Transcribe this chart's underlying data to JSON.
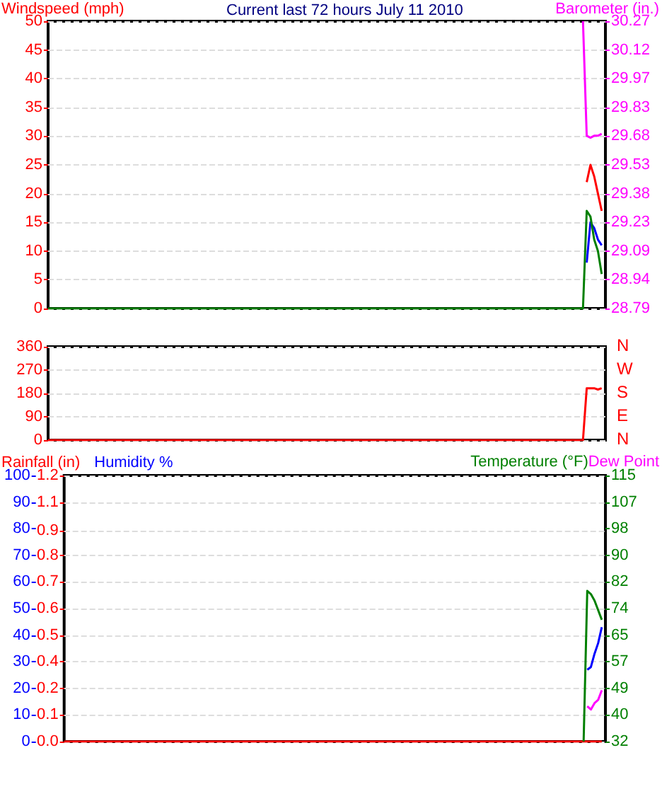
{
  "chart_data": [
    {
      "type": "line",
      "title": "Current last 72 hours July 11 2010",
      "ylabel": "Windspeed (mph)",
      "y2label": "Barometer (in.)",
      "categories": [
        null,
        null,
        null,
        null,
        null,
        null,
        null,
        null,
        null,
        null,
        null,
        null,
        null,
        null,
        null,
        null,
        null,
        null,
        null,
        null,
        null,
        null,
        null,
        null,
        null,
        null,
        null,
        null,
        null,
        null,
        null,
        null,
        null,
        null,
        null,
        null,
        null,
        null,
        null,
        null,
        null,
        null,
        null,
        null,
        null,
        null,
        null,
        null,
        null,
        null,
        null,
        null,
        null,
        null,
        null,
        null,
        null,
        null,
        null,
        null,
        null,
        null,
        null,
        null,
        null,
        null,
        null,
        null,
        null,
        null,
        null,
        null,
        null,
        null,
        null,
        null,
        null,
        null,
        null,
        null,
        null,
        null,
        null,
        null,
        null,
        null,
        null,
        null,
        null,
        null,
        null,
        null,
        null,
        null,
        null,
        null,
        null,
        null,
        null,
        null,
        null,
        null,
        null,
        null,
        null,
        null,
        null,
        null,
        null,
        null,
        null,
        null,
        null,
        null,
        null,
        null,
        null,
        null,
        null,
        null,
        null,
        null,
        null,
        null,
        null,
        null,
        null,
        null,
        null,
        null,
        null,
        null,
        null,
        null,
        null,
        null,
        null,
        null,
        null,
        null,
        null,
        null,
        null,
        null,
        null,
        null,
        null,
        null,
        null,
        null
      ],
      "ylim": [
        0,
        50
      ],
      "yticks": [
        0,
        5,
        10,
        15,
        20,
        25,
        30,
        35,
        40,
        45,
        50
      ],
      "y2lim": [
        28.79,
        30.27
      ],
      "y2ticks": [
        28.79,
        {
          "value": 28.938,
          "label": "28.94"
        },
        {
          "value": 29.086,
          "label": "29.09"
        },
        {
          "value": 29.234,
          "label": "29.23"
        },
        {
          "value": 29.382,
          "label": "29.38"
        },
        29.53,
        {
          "value": 29.678,
          "label": "29.68"
        },
        {
          "value": 29.826,
          "label": "29.83"
        },
        {
          "value": 29.974,
          "label": "29.97"
        },
        {
          "value": 30.122,
          "label": "30.12"
        },
        30.27
      ],
      "tick_labels": "y",
      "grid": "y",
      "series": [
        {
          "color": "#ff0000",
          "values": [
            null,
            null,
            null,
            null,
            null,
            null,
            null,
            null,
            null,
            null,
            null,
            null,
            null,
            null,
            null,
            null,
            null,
            null,
            null,
            null,
            null,
            null,
            null,
            null,
            null,
            null,
            null,
            null,
            null,
            null,
            null,
            null,
            null,
            null,
            null,
            null,
            null,
            null,
            null,
            null,
            null,
            null,
            null,
            null,
            null,
            null,
            null,
            null,
            null,
            null,
            null,
            null,
            null,
            null,
            null,
            null,
            null,
            null,
            null,
            null,
            null,
            null,
            null,
            null,
            null,
            null,
            null,
            null,
            null,
            null,
            null,
            null,
            null,
            null,
            null,
            null,
            null,
            null,
            null,
            null,
            null,
            null,
            null,
            null,
            null,
            null,
            null,
            null,
            null,
            null,
            null,
            null,
            null,
            null,
            null,
            null,
            null,
            null,
            null,
            null,
            null,
            null,
            null,
            null,
            null,
            null,
            null,
            null,
            null,
            null,
            null,
            null,
            null,
            null,
            null,
            null,
            null,
            null,
            null,
            null,
            null,
            null,
            null,
            null,
            null,
            null,
            null,
            null,
            null,
            null,
            null,
            null,
            null,
            null,
            null,
            null,
            null,
            null,
            null,
            null,
            null,
            null,
            null,
            null,
            22,
            25,
            23,
            20,
            17,
            null
          ]
        },
        {
          "color": "#0000ff",
          "values": [
            null,
            null,
            null,
            null,
            null,
            null,
            null,
            null,
            null,
            null,
            null,
            null,
            null,
            null,
            null,
            null,
            null,
            null,
            null,
            null,
            null,
            null,
            null,
            null,
            null,
            null,
            null,
            null,
            null,
            null,
            null,
            null,
            null,
            null,
            null,
            null,
            null,
            null,
            null,
            null,
            null,
            null,
            null,
            null,
            null,
            null,
            null,
            null,
            null,
            null,
            null,
            null,
            null,
            null,
            null,
            null,
            null,
            null,
            null,
            null,
            null,
            null,
            null,
            null,
            null,
            null,
            null,
            null,
            null,
            null,
            null,
            null,
            null,
            null,
            null,
            null,
            null,
            null,
            null,
            null,
            null,
            null,
            null,
            null,
            null,
            null,
            null,
            null,
            null,
            null,
            null,
            null,
            null,
            null,
            null,
            null,
            null,
            null,
            null,
            null,
            null,
            null,
            null,
            null,
            null,
            null,
            null,
            null,
            null,
            null,
            null,
            null,
            null,
            null,
            null,
            null,
            null,
            null,
            null,
            null,
            null,
            null,
            null,
            null,
            null,
            null,
            null,
            null,
            null,
            null,
            null,
            null,
            null,
            null,
            null,
            null,
            null,
            null,
            null,
            null,
            null,
            null,
            null,
            null,
            8,
            15,
            14,
            12,
            11,
            null
          ]
        },
        {
          "color": "#008000",
          "values": [
            0,
            0,
            0,
            0,
            0,
            0,
            0,
            0,
            0,
            0,
            0,
            0,
            0,
            0,
            0,
            0,
            0,
            0,
            0,
            0,
            0,
            0,
            0,
            0,
            0,
            0,
            0,
            0,
            0,
            0,
            0,
            0,
            0,
            0,
            0,
            0,
            0,
            0,
            0,
            0,
            0,
            0,
            0,
            0,
            0,
            0,
            0,
            0,
            0,
            0,
            0,
            0,
            0,
            0,
            0,
            0,
            0,
            0,
            0,
            0,
            0,
            0,
            0,
            0,
            0,
            0,
            0,
            0,
            0,
            0,
            0,
            0,
            0,
            0,
            0,
            0,
            0,
            0,
            0,
            0,
            0,
            0,
            0,
            0,
            0,
            0,
            0,
            0,
            0,
            0,
            0,
            0,
            0,
            0,
            0,
            0,
            0,
            0,
            0,
            0,
            0,
            0,
            0,
            0,
            0,
            0,
            0,
            0,
            0,
            0,
            0,
            0,
            0,
            0,
            0,
            0,
            0,
            0,
            0,
            0,
            0,
            0,
            0,
            0,
            0,
            0,
            0,
            0,
            0,
            0,
            0,
            0,
            0,
            0,
            0,
            0,
            0,
            0,
            0,
            0,
            0,
            0,
            0,
            0,
            17,
            16,
            12,
            10,
            6,
            null
          ]
        },
        {
          "color": "#ff00ff",
          "axis": "y2",
          "values": [
            null,
            null,
            null,
            null,
            null,
            null,
            null,
            null,
            null,
            null,
            null,
            null,
            null,
            null,
            null,
            null,
            null,
            null,
            null,
            null,
            null,
            null,
            null,
            null,
            null,
            null,
            null,
            null,
            null,
            null,
            null,
            null,
            null,
            null,
            null,
            null,
            null,
            null,
            null,
            null,
            null,
            null,
            null,
            null,
            null,
            null,
            null,
            null,
            null,
            null,
            null,
            null,
            null,
            null,
            null,
            null,
            null,
            null,
            null,
            null,
            null,
            null,
            null,
            null,
            null,
            null,
            null,
            null,
            null,
            null,
            null,
            null,
            null,
            null,
            null,
            null,
            null,
            null,
            null,
            null,
            null,
            null,
            null,
            null,
            null,
            null,
            null,
            null,
            null,
            null,
            null,
            null,
            null,
            null,
            null,
            null,
            null,
            null,
            null,
            null,
            null,
            null,
            null,
            null,
            null,
            null,
            null,
            null,
            null,
            null,
            null,
            null,
            null,
            null,
            null,
            null,
            null,
            null,
            null,
            null,
            null,
            null,
            null,
            null,
            null,
            null,
            null,
            null,
            null,
            null,
            null,
            null,
            null,
            null,
            null,
            null,
            null,
            null,
            null,
            null,
            null,
            null,
            null,
            30.27,
            29.68,
            29.67,
            29.68,
            29.68,
            29.69,
            null
          ]
        }
      ]
    },
    {
      "type": "line",
      "categories": [
        null,
        null,
        null,
        null,
        null,
        null,
        null,
        null,
        null,
        null,
        null,
        null,
        null,
        null,
        null,
        null,
        null,
        null,
        null,
        null,
        null,
        null,
        null,
        null,
        null,
        null,
        null,
        null,
        null,
        null,
        null,
        null,
        null,
        null,
        null,
        null,
        null,
        null,
        null,
        null,
        null,
        null,
        null,
        null,
        null,
        null,
        null,
        null,
        null,
        null,
        null,
        null,
        null,
        null,
        null,
        null,
        null,
        null,
        null,
        null,
        null,
        null,
        null,
        null,
        null,
        null,
        null,
        null,
        null,
        null,
        null,
        null,
        null,
        null,
        null,
        null,
        null,
        null,
        null,
        null,
        null,
        null,
        null,
        null,
        null,
        null,
        null,
        null,
        null,
        null,
        null,
        null,
        null,
        null,
        null,
        null,
        null,
        null,
        null,
        null,
        null,
        null,
        null,
        null,
        null,
        null,
        null,
        null,
        null,
        null,
        null,
        null,
        null,
        null,
        null,
        null,
        null,
        null,
        null,
        null,
        null,
        null,
        null,
        null,
        null,
        null,
        null,
        null,
        null,
        null,
        null,
        null,
        null,
        null,
        null,
        null,
        null,
        null,
        null,
        null,
        null,
        null,
        null,
        null,
        null,
        null,
        null,
        null,
        null,
        null
      ],
      "ylim": [
        0,
        360
      ],
      "yticks": [
        0,
        90,
        180,
        270,
        360
      ],
      "annotations": [
        "N",
        "W",
        "S",
        "E",
        "N"
      ],
      "tick_labels": "y",
      "grid": "y",
      "series": [
        {
          "color": "#ff0000",
          "values": [
            0,
            0,
            0,
            0,
            0,
            0,
            0,
            0,
            0,
            0,
            0,
            0,
            0,
            0,
            0,
            0,
            0,
            0,
            0,
            0,
            0,
            0,
            0,
            0,
            0,
            0,
            0,
            0,
            0,
            0,
            0,
            0,
            0,
            0,
            0,
            0,
            0,
            0,
            0,
            0,
            0,
            0,
            0,
            0,
            0,
            0,
            0,
            0,
            0,
            0,
            0,
            0,
            0,
            0,
            0,
            0,
            0,
            0,
            0,
            0,
            0,
            0,
            0,
            0,
            0,
            0,
            0,
            0,
            0,
            0,
            0,
            0,
            0,
            0,
            0,
            0,
            0,
            0,
            0,
            0,
            0,
            0,
            0,
            0,
            0,
            0,
            0,
            0,
            0,
            0,
            0,
            0,
            0,
            0,
            0,
            0,
            0,
            0,
            0,
            0,
            0,
            0,
            0,
            0,
            0,
            0,
            0,
            0,
            0,
            0,
            0,
            0,
            0,
            0,
            0,
            0,
            0,
            0,
            0,
            0,
            0,
            0,
            0,
            0,
            0,
            0,
            0,
            0,
            0,
            0,
            0,
            0,
            0,
            0,
            0,
            0,
            0,
            0,
            0,
            0,
            0,
            0,
            0,
            0,
            200,
            200,
            200,
            195,
            200,
            null
          ]
        }
      ]
    },
    {
      "type": "line",
      "ylabel": "Rainfall (in)",
      "y3label": "Humidity %",
      "y2label": "Temperature (°F)",
      "categories": [
        null,
        null,
        null,
        null,
        null,
        null,
        null,
        null,
        null,
        null,
        null,
        null,
        null,
        null,
        null,
        null,
        null,
        null,
        null,
        null,
        null,
        null,
        null,
        null,
        null,
        null,
        null,
        null,
        null,
        null,
        null,
        null,
        null,
        null,
        null,
        null,
        null,
        null,
        null,
        null,
        null,
        null,
        null,
        null,
        null,
        null,
        null,
        null,
        null,
        null,
        null,
        null,
        null,
        null,
        null,
        null,
        null,
        null,
        null,
        null,
        null,
        null,
        null,
        null,
        null,
        null,
        null,
        null,
        null,
        null,
        null,
        null,
        null,
        null,
        null,
        null,
        null,
        null,
        null,
        null,
        null,
        null,
        null,
        null,
        null,
        null,
        null,
        null,
        null,
        null,
        null,
        null,
        null,
        null,
        null,
        null,
        null,
        null,
        null,
        null,
        null,
        null,
        null,
        null,
        null,
        null,
        null,
        null,
        null,
        null,
        null,
        null,
        null,
        null,
        null,
        null,
        null,
        null,
        null,
        null,
        null,
        null,
        null,
        null,
        null,
        null,
        null,
        null,
        null,
        null,
        null,
        null,
        null,
        null,
        null,
        null,
        null,
        null,
        null,
        null,
        null,
        null,
        null,
        null,
        null,
        null,
        null,
        null,
        null,
        null
      ],
      "ylim": [
        0,
        1.2
      ],
      "yticks": [
        {
          "value": 0,
          "label": "0.0"
        },
        {
          "value": 0.12,
          "label": "0.1"
        },
        {
          "value": 0.24,
          "label": "0.2"
        },
        {
          "value": 0.36,
          "label": "0.4"
        },
        {
          "value": 0.48,
          "label": "0.5"
        },
        0.6,
        {
          "value": 0.72,
          "label": "0.7"
        },
        {
          "value": 0.84,
          "label": "0.8"
        },
        {
          "value": 0.95,
          "label": "0.9"
        },
        {
          "value": 1.08,
          "label": "1.1"
        },
        1.2
      ],
      "y3lim": [
        0,
        100
      ],
      "y3ticks": [
        0,
        10,
        20,
        30,
        40,
        50,
        60,
        70,
        80,
        90,
        100
      ],
      "y2lim": [
        32,
        115
      ],
      "y2ticks": [
        32,
        {
          "value": 40.3,
          "label": "40"
        },
        {
          "value": 48.6,
          "label": "49"
        },
        {
          "value": 56.9,
          "label": "57"
        },
        {
          "value": 65.2,
          "label": "65"
        },
        {
          "value": 73.5,
          "label": "74"
        },
        {
          "value": 81.8,
          "label": "82"
        },
        {
          "value": 90.1,
          "label": "90"
        },
        {
          "value": 98.4,
          "label": "98"
        },
        {
          "value": 106.7,
          "label": "107"
        },
        115
      ],
      "tick_labels": "y",
      "grid": "y",
      "series": [
        {
          "color": "#ff0000",
          "values": [
            0,
            0,
            0,
            0,
            0,
            0,
            0,
            0,
            0,
            0,
            0,
            0,
            0,
            0,
            0,
            0,
            0,
            0,
            0,
            0,
            0,
            0,
            0,
            0,
            0,
            0,
            0,
            0,
            0,
            0,
            0,
            0,
            0,
            0,
            0,
            0,
            0,
            0,
            0,
            0,
            0,
            0,
            0,
            0,
            0,
            0,
            0,
            0,
            0,
            0,
            0,
            0,
            0,
            0,
            0,
            0,
            0,
            0,
            0,
            0,
            0,
            0,
            0,
            0,
            0,
            0,
            0,
            0,
            0,
            0,
            0,
            0,
            0,
            0,
            0,
            0,
            0,
            0,
            0,
            0,
            0,
            0,
            0,
            0,
            0,
            0,
            0,
            0,
            0,
            0,
            0,
            0,
            0,
            0,
            0,
            0,
            0,
            0,
            0,
            0,
            0,
            0,
            0,
            0,
            0,
            0,
            0,
            0,
            0,
            0,
            0,
            0,
            0,
            0,
            0,
            0,
            0,
            0,
            0,
            0,
            0,
            0,
            0,
            0,
            0,
            0,
            0,
            0,
            0,
            0,
            0,
            0,
            0,
            0,
            0,
            0,
            0,
            0,
            0,
            0,
            0,
            0,
            0,
            0,
            0,
            0,
            0,
            0,
            0,
            null
          ]
        },
        {
          "color": "#008000",
          "axis": "y2",
          "values": [
            null,
            null,
            null,
            null,
            null,
            null,
            null,
            null,
            null,
            null,
            null,
            null,
            null,
            null,
            null,
            null,
            null,
            null,
            null,
            null,
            null,
            null,
            null,
            null,
            null,
            null,
            null,
            null,
            null,
            null,
            null,
            null,
            null,
            null,
            null,
            null,
            null,
            null,
            null,
            null,
            null,
            null,
            null,
            null,
            null,
            null,
            null,
            null,
            null,
            null,
            null,
            null,
            null,
            null,
            null,
            null,
            null,
            null,
            null,
            null,
            null,
            null,
            null,
            null,
            null,
            null,
            null,
            null,
            null,
            null,
            null,
            null,
            null,
            null,
            null,
            null,
            null,
            null,
            null,
            null,
            null,
            null,
            null,
            null,
            null,
            null,
            null,
            null,
            null,
            null,
            null,
            null,
            null,
            null,
            null,
            null,
            null,
            null,
            null,
            null,
            null,
            null,
            null,
            null,
            null,
            null,
            null,
            null,
            null,
            null,
            null,
            null,
            null,
            null,
            null,
            null,
            null,
            null,
            null,
            null,
            null,
            null,
            null,
            null,
            null,
            null,
            null,
            null,
            null,
            null,
            null,
            null,
            null,
            null,
            null,
            null,
            null,
            null,
            null,
            null,
            null,
            null,
            null,
            32,
            79,
            78,
            76,
            73,
            70,
            null
          ]
        },
        {
          "name": "Dew Point",
          "color": "#ff00ff",
          "axis": "y2",
          "values": [
            null,
            null,
            null,
            null,
            null,
            null,
            null,
            null,
            null,
            null,
            null,
            null,
            null,
            null,
            null,
            null,
            null,
            null,
            null,
            null,
            null,
            null,
            null,
            null,
            null,
            null,
            null,
            null,
            null,
            null,
            null,
            null,
            null,
            null,
            null,
            null,
            null,
            null,
            null,
            null,
            null,
            null,
            null,
            null,
            null,
            null,
            null,
            null,
            null,
            null,
            null,
            null,
            null,
            null,
            null,
            null,
            null,
            null,
            null,
            null,
            null,
            null,
            null,
            null,
            null,
            null,
            null,
            null,
            null,
            null,
            null,
            null,
            null,
            null,
            null,
            null,
            null,
            null,
            null,
            null,
            null,
            null,
            null,
            null,
            null,
            null,
            null,
            null,
            null,
            null,
            null,
            null,
            null,
            null,
            null,
            null,
            null,
            null,
            null,
            null,
            null,
            null,
            null,
            null,
            null,
            null,
            null,
            null,
            null,
            null,
            null,
            null,
            null,
            null,
            null,
            null,
            null,
            null,
            null,
            null,
            null,
            null,
            null,
            null,
            null,
            null,
            null,
            null,
            null,
            null,
            null,
            null,
            null,
            null,
            null,
            null,
            null,
            null,
            null,
            null,
            null,
            null,
            null,
            null,
            43,
            42,
            44,
            45,
            48,
            null
          ]
        },
        {
          "color": "#0000ff",
          "axis": "y3",
          "values": [
            null,
            null,
            null,
            null,
            null,
            null,
            null,
            null,
            null,
            null,
            null,
            null,
            null,
            null,
            null,
            null,
            null,
            null,
            null,
            null,
            null,
            null,
            null,
            null,
            null,
            null,
            null,
            null,
            null,
            null,
            null,
            null,
            null,
            null,
            null,
            null,
            null,
            null,
            null,
            null,
            null,
            null,
            null,
            null,
            null,
            null,
            null,
            null,
            null,
            null,
            null,
            null,
            null,
            null,
            null,
            null,
            null,
            null,
            null,
            null,
            null,
            null,
            null,
            null,
            null,
            null,
            null,
            null,
            null,
            null,
            null,
            null,
            null,
            null,
            null,
            null,
            null,
            null,
            null,
            null,
            null,
            null,
            null,
            null,
            null,
            null,
            null,
            null,
            null,
            null,
            null,
            null,
            null,
            null,
            null,
            null,
            null,
            null,
            null,
            null,
            null,
            null,
            null,
            null,
            null,
            null,
            null,
            null,
            null,
            null,
            null,
            null,
            null,
            null,
            null,
            null,
            null,
            null,
            null,
            null,
            null,
            null,
            null,
            null,
            null,
            null,
            null,
            null,
            null,
            null,
            null,
            null,
            null,
            null,
            null,
            null,
            null,
            null,
            null,
            null,
            null,
            null,
            null,
            null,
            27,
            28,
            33,
            37,
            43,
            null
          ]
        }
      ]
    }
  ]
}
